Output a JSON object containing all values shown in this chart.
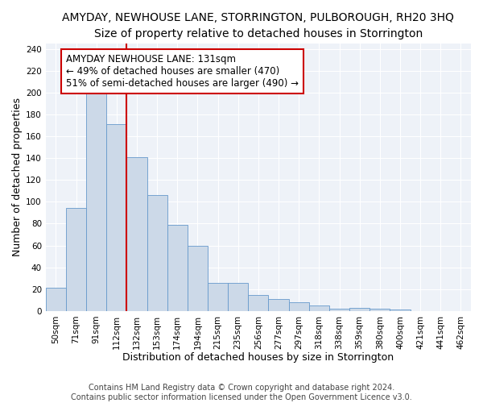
{
  "title": "AMYDAY, NEWHOUSE LANE, STORRINGTON, PULBOROUGH, RH20 3HQ",
  "subtitle": "Size of property relative to detached houses in Storrington",
  "xlabel": "Distribution of detached houses by size in Storrington",
  "ylabel": "Number of detached properties",
  "bar_labels": [
    "50sqm",
    "71sqm",
    "91sqm",
    "112sqm",
    "132sqm",
    "153sqm",
    "174sqm",
    "194sqm",
    "215sqm",
    "235sqm",
    "256sqm",
    "277sqm",
    "297sqm",
    "318sqm",
    "338sqm",
    "359sqm",
    "380sqm",
    "400sqm",
    "421sqm",
    "441sqm",
    "462sqm"
  ],
  "bar_values": [
    21,
    94,
    199,
    171,
    141,
    106,
    79,
    60,
    26,
    26,
    15,
    11,
    8,
    5,
    2,
    3,
    2,
    1,
    0,
    0,
    0
  ],
  "bar_color": "#ccd9e8",
  "bar_edge_color": "#6699cc",
  "vline_x_index": 3.5,
  "vline_color": "#cc0000",
  "annotation_text": "AMYDAY NEWHOUSE LANE: 131sqm\n← 49% of detached houses are smaller (470)\n51% of semi-detached houses are larger (490) →",
  "annotation_box_color": "white",
  "annotation_box_edge": "#cc0000",
  "ylim": [
    0,
    245
  ],
  "yticks": [
    0,
    20,
    40,
    60,
    80,
    100,
    120,
    140,
    160,
    180,
    200,
    220,
    240
  ],
  "footer1": "Contains HM Land Registry data © Crown copyright and database right 2024.",
  "footer2": "Contains public sector information licensed under the Open Government Licence v3.0.",
  "title_fontsize": 10,
  "subtitle_fontsize": 9.5,
  "axis_label_fontsize": 9,
  "tick_fontsize": 7.5,
  "annotation_fontsize": 8.5,
  "footer_fontsize": 7,
  "bg_color": "#eef2f8"
}
